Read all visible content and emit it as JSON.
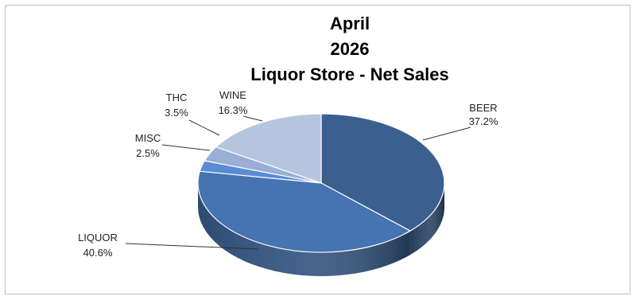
{
  "chart_data": {
    "type": "pie",
    "title_lines": [
      "April",
      "2026",
      "Liquor Store - Net Sales"
    ],
    "slices": [
      {
        "name": "BEER",
        "value": 37.2,
        "label": "37.2%",
        "color": "#3b5f8f"
      },
      {
        "name": "LIQUOR",
        "value": 40.6,
        "label": "40.6%",
        "color": "#4673b1"
      },
      {
        "name": "MISC",
        "value": 2.5,
        "label": "2.5%",
        "color": "#5b8bd3"
      },
      {
        "name": "THC",
        "value": 3.5,
        "label": "3.5%",
        "color": "#9aaed6"
      },
      {
        "name": "WINE",
        "value": 16.3,
        "label": "16.3%",
        "color": "#b7c4de"
      }
    ],
    "legend": "none",
    "three_d": true
  }
}
